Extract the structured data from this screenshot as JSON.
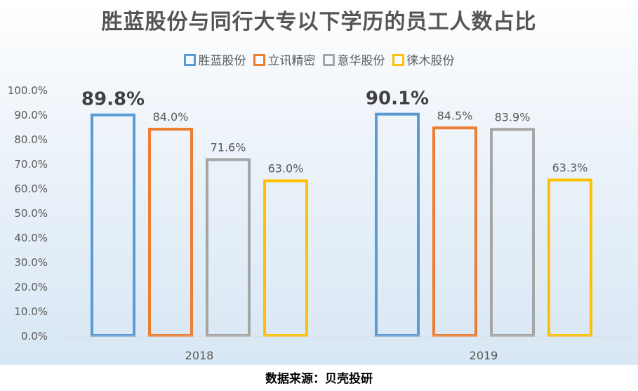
{
  "chart_data": {
    "type": "bar",
    "title": "胜蓝股份与同行大专以下学历的员工人数占比",
    "categories": [
      "2018",
      "2019"
    ],
    "series": [
      {
        "name": "胜蓝股份",
        "color": "#5b9bd5",
        "values": [
          89.8,
          90.1
        ],
        "labels": [
          "89.8%",
          "90.1%"
        ],
        "emphasis": true
      },
      {
        "name": "立讯精密",
        "color": "#ed7d31",
        "values": [
          84.0,
          84.5
        ],
        "labels": [
          "84.0%",
          "84.5%"
        ]
      },
      {
        "name": "意华股份",
        "color": "#a5a5a5",
        "values": [
          71.6,
          83.9
        ],
        "labels": [
          "71.6%",
          "83.9%"
        ]
      },
      {
        "name": "徕木股份",
        "color": "#ffc000",
        "values": [
          63.0,
          63.3
        ],
        "labels": [
          "63.0%",
          "63.3%"
        ]
      }
    ],
    "ylim": [
      0,
      100
    ],
    "yticks": [
      "0.0%",
      "10.0%",
      "20.0%",
      "30.0%",
      "40.0%",
      "50.0%",
      "60.0%",
      "70.0%",
      "80.0%",
      "90.0%",
      "100.0%"
    ],
    "legend": "top-center",
    "grid": false,
    "bar_style": "outline"
  },
  "source": "数据来源：贝壳投研"
}
